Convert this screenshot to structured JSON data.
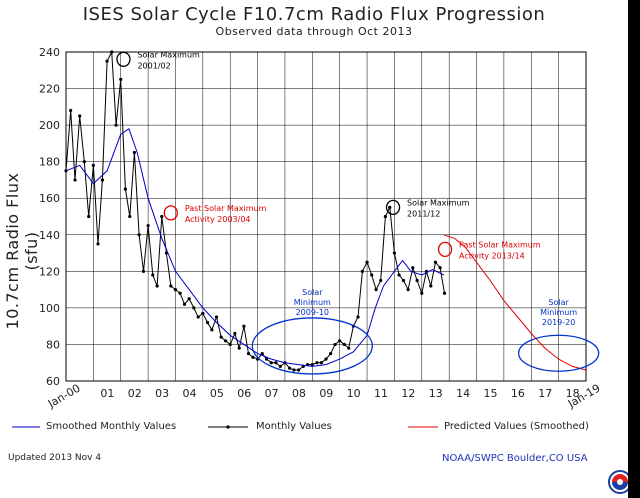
{
  "titles": {
    "main": "ISES Solar Cycle F10.7cm Radio Flux Progression",
    "sub": "Observed data through Oct 2013",
    "ylabel": "10.7cm Radio Flux (sfu)"
  },
  "footer": {
    "updated": "Updated 2013 Nov  4",
    "credit": "NOAA/SWPC Boulder,CO USA"
  },
  "legend": {
    "smoothed": "Smoothed Monthly Values",
    "monthly": "Monthly Values",
    "predicted": "Predicted Values (Smoothed)"
  },
  "colors": {
    "smoothed": "#0000cc",
    "monthly": "#000000",
    "predicted": "#dd0000",
    "black_annot": "#000000",
    "red_annot": "#dd0000",
    "blue_annot": "#0033cc"
  },
  "chart_data": {
    "type": "line",
    "title": "ISES Solar Cycle F10.7cm Radio Flux Progression",
    "subtitle": "Observed data through Oct 2013",
    "ylabel": "10.7cm Radio Flux (sfu)",
    "xlim": [
      2000.0,
      2019.0
    ],
    "ylim": [
      60,
      240
    ],
    "yticks": [
      60,
      80,
      100,
      120,
      140,
      160,
      180,
      200,
      220,
      240
    ],
    "xtick_labels": [
      "Jan-00",
      "01",
      "02",
      "03",
      "04",
      "05",
      "06",
      "07",
      "08",
      "09",
      "10",
      "11",
      "12",
      "13",
      "14",
      "15",
      "16",
      "17",
      "18",
      "Jan-19"
    ],
    "xtick_values": [
      2000,
      2001,
      2002,
      2003,
      2004,
      2005,
      2006,
      2007,
      2008,
      2009,
      2010,
      2011,
      2012,
      2013,
      2014,
      2015,
      2016,
      2017,
      2018,
      2019
    ],
    "grid": true,
    "series": [
      {
        "name": "Monthly Values",
        "style": "points-line",
        "x": [
          2000.0,
          2000.17,
          2000.33,
          2000.5,
          2000.67,
          2000.83,
          2001.0,
          2001.17,
          2001.33,
          2001.5,
          2001.67,
          2001.83,
          2002.0,
          2002.17,
          2002.33,
          2002.5,
          2002.67,
          2002.83,
          2003.0,
          2003.17,
          2003.33,
          2003.5,
          2003.67,
          2003.83,
          2004.0,
          2004.17,
          2004.33,
          2004.5,
          2004.67,
          2004.83,
          2005.0,
          2005.17,
          2005.33,
          2005.5,
          2005.67,
          2005.83,
          2006.0,
          2006.17,
          2006.33,
          2006.5,
          2006.67,
          2006.83,
          2007.0,
          2007.17,
          2007.33,
          2007.5,
          2007.67,
          2007.83,
          2008.0,
          2008.17,
          2008.33,
          2008.5,
          2008.67,
          2008.83,
          2009.0,
          2009.17,
          2009.33,
          2009.5,
          2009.67,
          2009.83,
          2010.0,
          2010.17,
          2010.33,
          2010.5,
          2010.67,
          2010.83,
          2011.0,
          2011.17,
          2011.33,
          2011.5,
          2011.67,
          2011.83,
          2012.0,
          2012.17,
          2012.33,
          2012.5,
          2012.67,
          2012.83,
          2013.0,
          2013.17,
          2013.33,
          2013.5,
          2013.67,
          2013.83
        ],
        "values": [
          175,
          208,
          170,
          205,
          180,
          150,
          178,
          135,
          170,
          235,
          240,
          200,
          225,
          165,
          150,
          185,
          140,
          120,
          145,
          118,
          112,
          150,
          130,
          112,
          110,
          108,
          102,
          105,
          100,
          95,
          97,
          92,
          88,
          95,
          84,
          82,
          80,
          86,
          78,
          90,
          75,
          73,
          72,
          75,
          72,
          70,
          70,
          68,
          70,
          67,
          66,
          66,
          68,
          69,
          69,
          70,
          70,
          72,
          75,
          80,
          82,
          80,
          78,
          90,
          95,
          120,
          125,
          118,
          110,
          115,
          150,
          155,
          130,
          118,
          115,
          110,
          122,
          115,
          108,
          120,
          112,
          125,
          122,
          108
        ]
      },
      {
        "name": "Smoothed Monthly Values",
        "style": "line",
        "x": [
          2000.0,
          2000.5,
          2001.0,
          2001.5,
          2002.0,
          2002.3,
          2002.6,
          2003.0,
          2003.5,
          2004.0,
          2004.5,
          2005.0,
          2005.5,
          2006.0,
          2006.5,
          2007.0,
          2007.5,
          2008.0,
          2008.5,
          2009.0,
          2009.5,
          2010.0,
          2010.5,
          2011.0,
          2011.3,
          2011.6,
          2012.0,
          2012.3,
          2012.6,
          2013.0,
          2013.4,
          2013.8
        ],
        "values": [
          175,
          178,
          168,
          175,
          195,
          198,
          185,
          160,
          138,
          120,
          110,
          100,
          92,
          85,
          80,
          75,
          72,
          70,
          69,
          68,
          69,
          72,
          76,
          85,
          100,
          112,
          120,
          126,
          120,
          118,
          121,
          118
        ]
      },
      {
        "name": "Predicted Values (Smoothed)",
        "style": "line",
        "x": [
          2013.8,
          2014.2,
          2014.6,
          2015.0,
          2015.5,
          2016.0,
          2016.5,
          2017.0,
          2017.5,
          2018.0,
          2018.5,
          2019.0
        ],
        "values": [
          140,
          138,
          133,
          125,
          115,
          104,
          95,
          86,
          78,
          72,
          68,
          66
        ]
      }
    ],
    "annotations": [
      {
        "text": "Solar Maximum",
        "text2": "2001/02",
        "x": 2002.1,
        "y": 236,
        "color": "black"
      },
      {
        "text": "Past Solar Maximum",
        "text2": "Activity 2003/04",
        "x": 2003.83,
        "y": 152,
        "color": "red"
      },
      {
        "text": "Solar",
        "text2": "Minimum",
        "text3": "2009-10",
        "x": 2009.0,
        "y": 77,
        "color": "blue"
      },
      {
        "text": "Solar Maximum",
        "text2": "2011/12",
        "x": 2011.95,
        "y": 155,
        "color": "black"
      },
      {
        "text": "Past Solar Maximum",
        "text2": "Activity 2013/14",
        "x": 2013.85,
        "y": 132,
        "color": "red"
      },
      {
        "text": "Solar",
        "text2": "Minimum",
        "text3": "2019-20",
        "x": 2018.0,
        "y": 73,
        "color": "blue"
      }
    ]
  }
}
